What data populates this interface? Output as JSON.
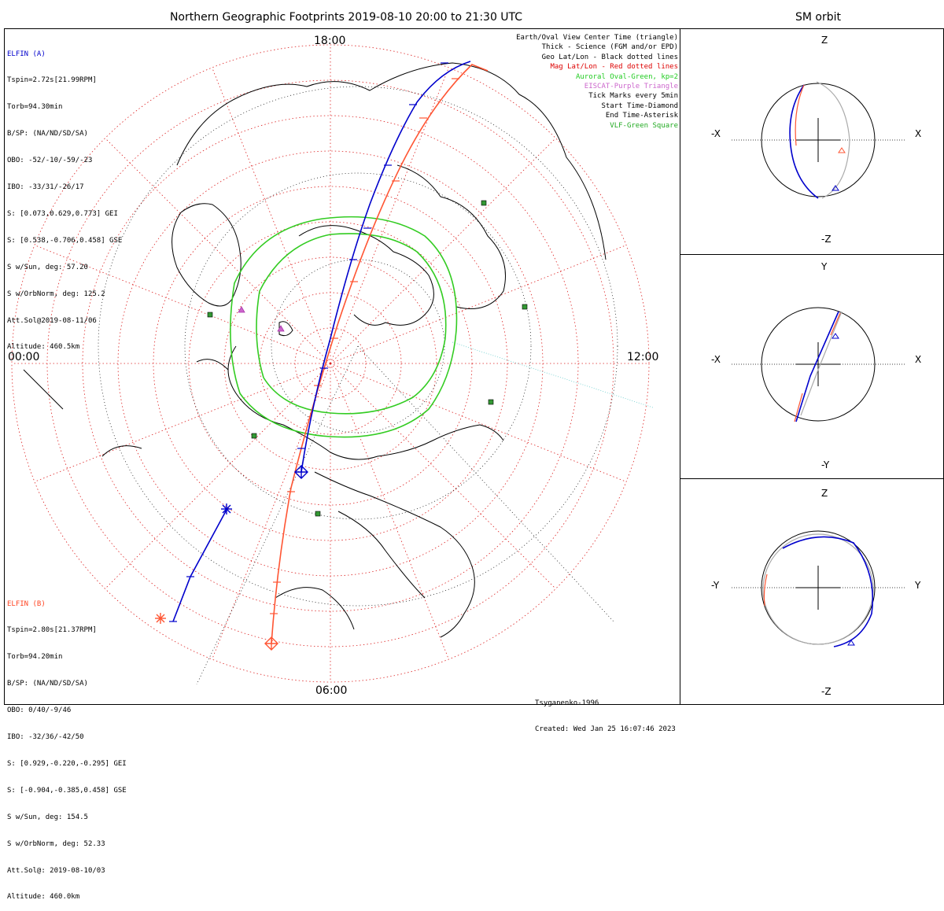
{
  "title": "Northern Geographic Footprints 2019-08-10 20:00 to 21:30 UTC",
  "sm_title": "SM orbit",
  "elfin_a": {
    "name": "ELFIN (A)",
    "color": "#0000cc",
    "lines": [
      "Tspin=2.72s[21.99RPM]",
      "Torb=94.30min",
      "B/SP: (NA/ND/SD/SA)",
      "OBO: -52/-10/-59/-23",
      "IBO: -33/31/-26/17",
      "S: [0.073,0.629,0.773] GEI",
      "S: [0.538,-0.706,0.458] GSE",
      "S w/Sun, deg: 57.20",
      "S w/OrbNorm, deg: 125.2",
      "Att.Sol@2019-08-11/06",
      "Altitude: 460.5km"
    ]
  },
  "elfin_b": {
    "name": "ELFIN (B)",
    "color": "#ff4422",
    "lines": [
      "Tspin=2.80s[21.37RPM]",
      "Torb=94.20min",
      "B/SP: (NA/ND/SD/SA)",
      "OBO: 0/40/-9/46",
      "IBO: -32/36/-42/50",
      "S: [0.929,-0.220,-0.295] GEI",
      "S: [-0.904,-0.385,0.458] GSE",
      "S w/Sun, deg: 154.5",
      "S w/OrbNorm, deg: 52.33",
      "Att.Sol@: 2019-08-10/03",
      "Altitude: 460.0km"
    ]
  },
  "legend": [
    {
      "text": "Earth/Oval View Center Time (triangle)",
      "color": "#000000"
    },
    {
      "text": "Thick - Science (FGM and/or EPD)",
      "color": "#000000"
    },
    {
      "text": "Geo Lat/Lon - Black dotted lines",
      "color": "#000000"
    },
    {
      "text": "Mag Lat/Lon - Red dotted lines",
      "color": "#dd0000"
    },
    {
      "text": "Auroral Oval-Green, kp=2",
      "color": "#22cc22"
    },
    {
      "text": "EISCAT-Purple Triangle",
      "color": "#cc66cc"
    },
    {
      "text": "Tick Marks every 5min",
      "color": "#000000"
    },
    {
      "text": "Start Time-Diamond",
      "color": "#000000"
    },
    {
      "text": "End Time-Asterisk",
      "color": "#000000"
    },
    {
      "text": "VLF-Green Square",
      "color": "#22aa22"
    }
  ],
  "hours": {
    "top": "18:00",
    "left": "00:00",
    "right": "12:00",
    "bottom": "06:00"
  },
  "credit": [
    "Tsyganenko-1996",
    "Created: Wed Jan 25 16:07:46 2023"
  ],
  "sm_panels": [
    {
      "left": "-X",
      "right": "X",
      "top": "Z",
      "bottom": "-Z"
    },
    {
      "left": "-X",
      "right": "X",
      "top": "Y",
      "bottom": "-Y"
    },
    {
      "left": "-Y",
      "right": "Y",
      "top": "Z",
      "bottom": "-Z"
    }
  ],
  "colors": {
    "elfin_a": "#0000cc",
    "elfin_b": "#ff5533",
    "oval": "#33cc22",
    "mag_grid": "#dd2222",
    "vlf": "#339933",
    "eiscat": "#aa33aa",
    "orbit_gray": "#aaaaaa"
  }
}
